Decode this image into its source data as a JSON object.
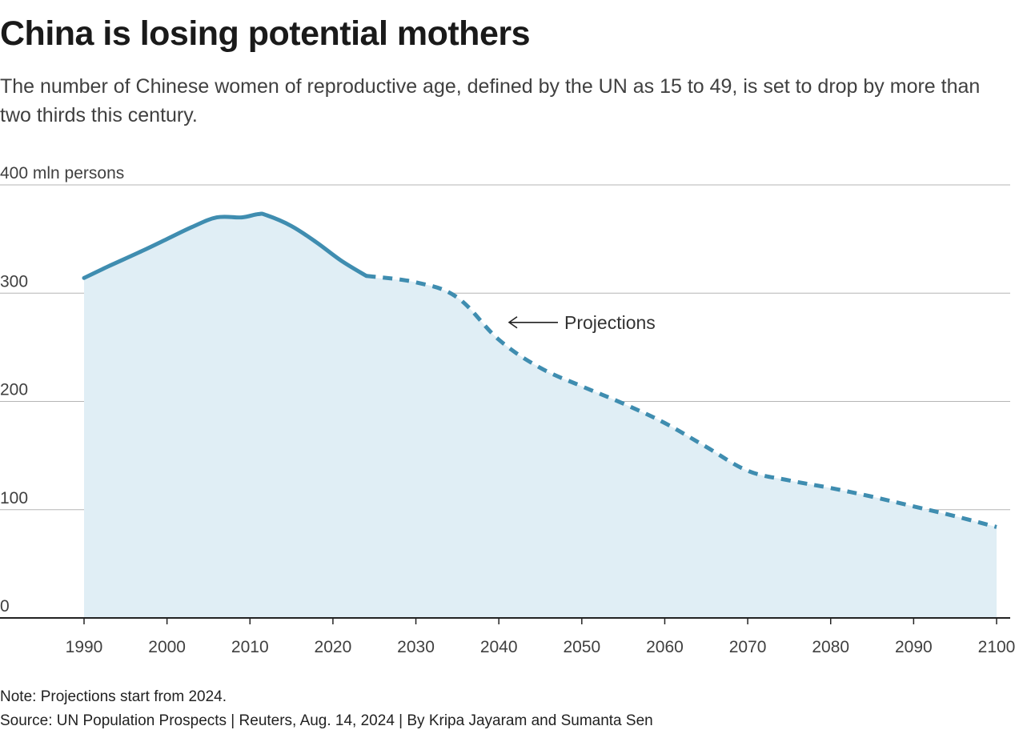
{
  "chart_data": {
    "type": "area",
    "title": "China is losing potential mothers",
    "subtitle": "The number of Chinese women of reproductive age, defined by the UN as 15 to 49, is set to drop by more than two thirds this century.",
    "ylabel": "400 mln persons",
    "ylim": [
      0,
      400
    ],
    "yticks": [
      0,
      100,
      200,
      300,
      400
    ],
    "ytick_labels": [
      "0",
      "100",
      "200",
      "300",
      "400 mln persons"
    ],
    "xlim": [
      1990,
      2100
    ],
    "xticks": [
      1990,
      2000,
      2010,
      2020,
      2030,
      2040,
      2050,
      2060,
      2070,
      2080,
      2090,
      2100
    ],
    "grid": true,
    "projection_start": 2024,
    "annotation": "Projections",
    "series": [
      {
        "x": [
          1990,
          1993,
          1997,
          2000,
          2003,
          2006,
          2009,
          2011,
          2012,
          2015,
          2018,
          2021,
          2024,
          2030,
          2035,
          2040,
          2045,
          2050,
          2055,
          2060,
          2065,
          2070,
          2075,
          2080,
          2085,
          2090,
          2095,
          2100
        ],
        "y": [
          314,
          325,
          339,
          350,
          361,
          370,
          370,
          373,
          372,
          362,
          347,
          330,
          316,
          310,
          296,
          257,
          231,
          214,
          198,
          180,
          158,
          136,
          127,
          120,
          112,
          103,
          94,
          84
        ]
      }
    ],
    "colors": {
      "line": "#3f8db0",
      "fill": "#e0eef5",
      "grid": "#b5b5b5",
      "axis": "#222222"
    }
  },
  "footer": {
    "note": "Note: Projections start from 2024.",
    "source": "Source: UN Population Prospects | Reuters, Aug. 14, 2024 | By Kripa Jayaram and Sumanta Sen"
  }
}
